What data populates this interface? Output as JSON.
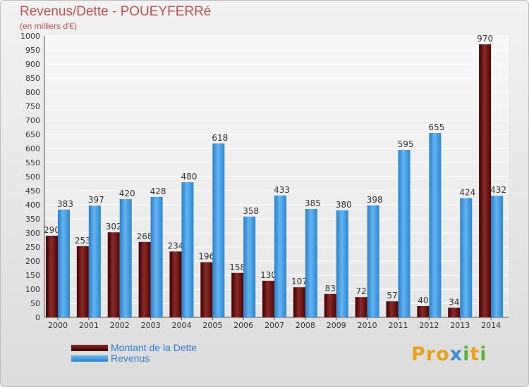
{
  "header": {
    "title": "Revenus/Dette - POUEYFERRé",
    "subtitle": "(en milliers d'€)"
  },
  "legend": {
    "debt_label": "Montant de la Dette",
    "revenue_label": "Revenus"
  },
  "logo": {
    "letters": [
      "P",
      "r",
      "o",
      "x",
      "i",
      "t",
      "i"
    ]
  },
  "colors": {
    "debt": "#6b0f0f",
    "revenue": "#4aa3e6",
    "title": "#c0504d",
    "legend_text": "#2e7dd1"
  },
  "chart_data": {
    "type": "bar",
    "categories": [
      "2000",
      "2001",
      "2002",
      "2003",
      "2004",
      "2005",
      "2006",
      "2007",
      "2008",
      "2009",
      "2010",
      "2011",
      "2012",
      "2013",
      "2014"
    ],
    "series": [
      {
        "name": "Montant de la Dette",
        "values": [
          290,
          253,
          302,
          268,
          234,
          196,
          158,
          130,
          107,
          83,
          72,
          57,
          40,
          34,
          970
        ]
      },
      {
        "name": "Revenus",
        "values": [
          383,
          397,
          420,
          428,
          480,
          618,
          358,
          433,
          385,
          380,
          398,
          595,
          655,
          424,
          432
        ]
      }
    ],
    "ylim": [
      0,
      1000
    ],
    "yticks": [
      0,
      50,
      100,
      150,
      200,
      250,
      300,
      350,
      400,
      450,
      500,
      550,
      600,
      650,
      700,
      750,
      800,
      850,
      900,
      950,
      1000
    ],
    "grid": true,
    "legend_position": "bottom-left"
  }
}
